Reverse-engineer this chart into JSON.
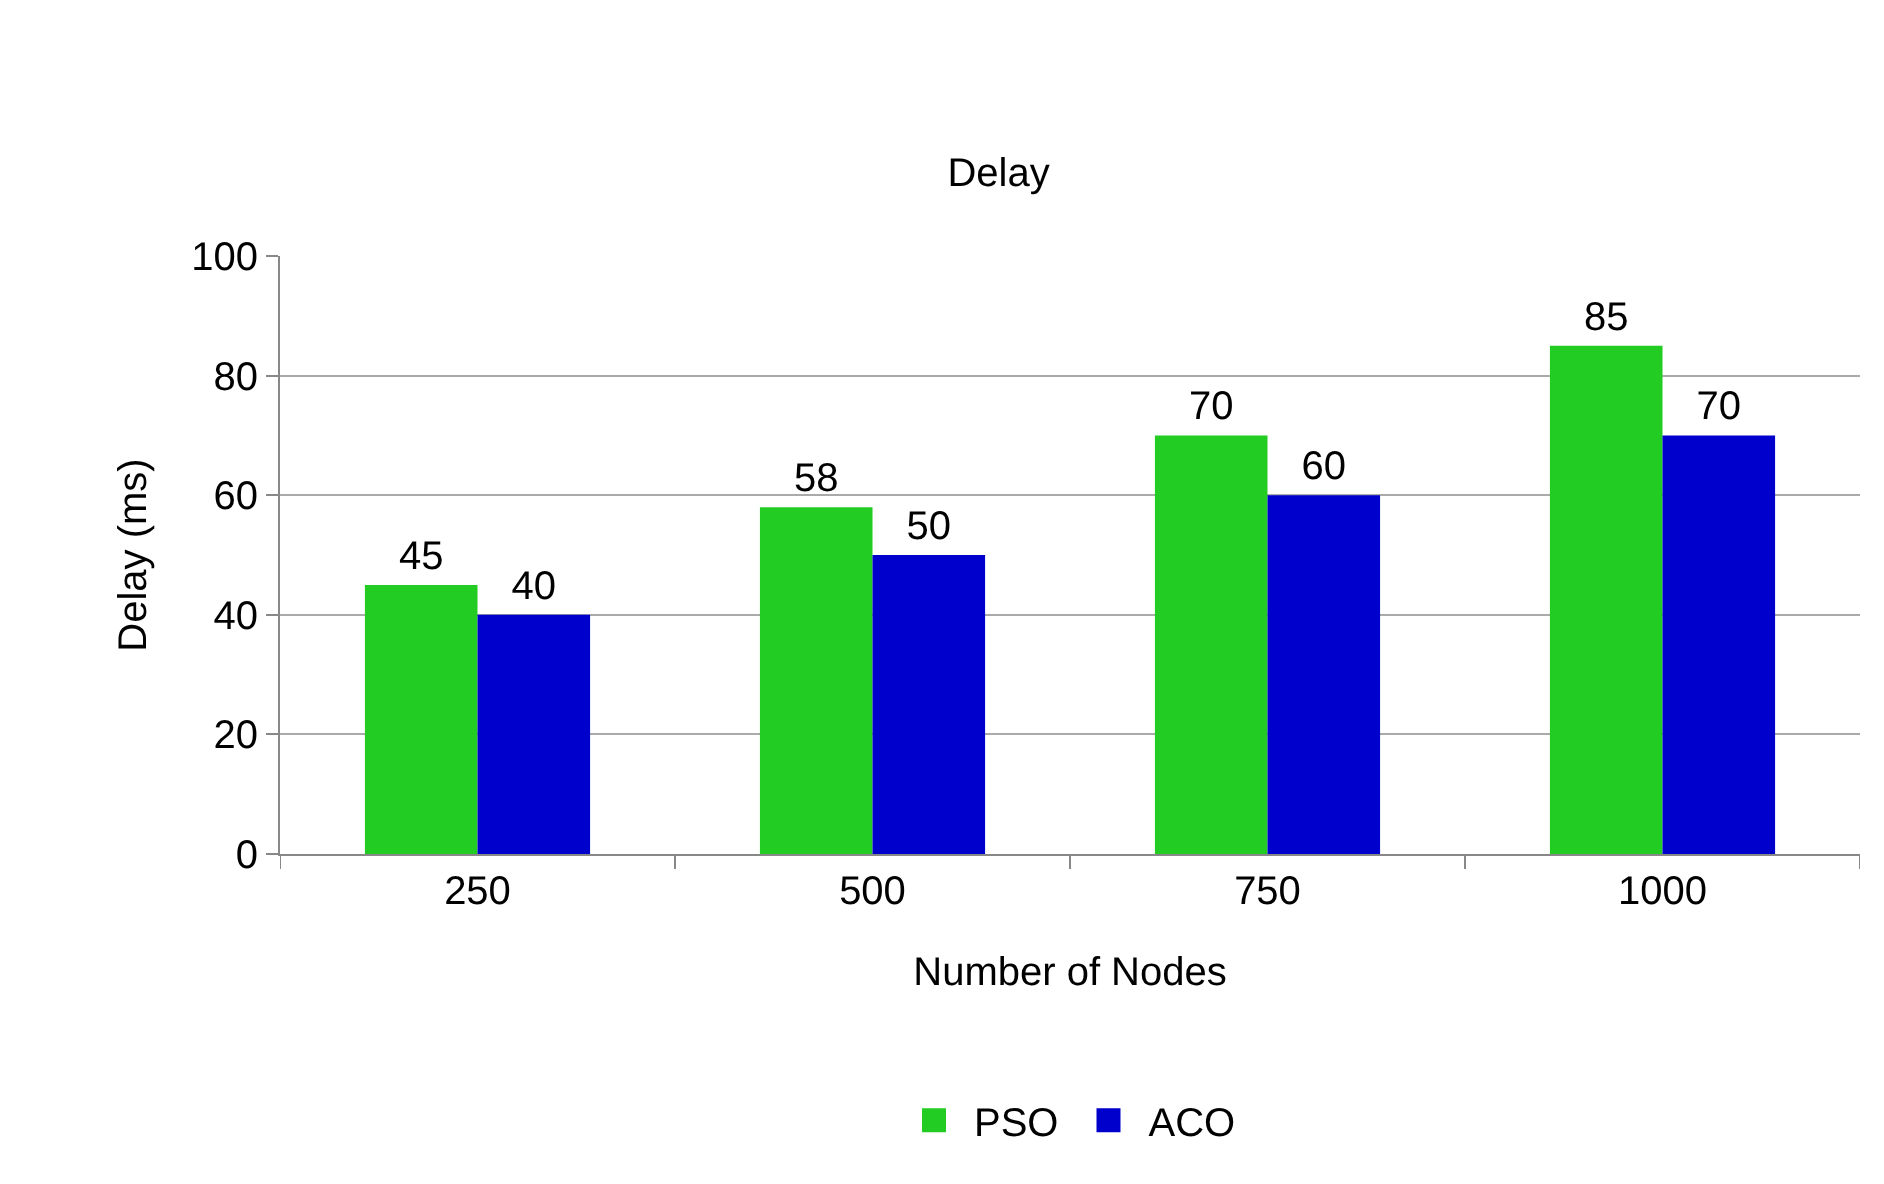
{
  "chart_data": {
    "type": "bar",
    "title": "Delay",
    "xlabel": "Number of Nodes",
    "ylabel": "Delay (ms)",
    "categories": [
      "250",
      "500",
      "750",
      "1000"
    ],
    "series": [
      {
        "name": "PSO",
        "color": "#22cc22",
        "values": [
          45,
          58,
          70,
          85
        ]
      },
      {
        "name": "ACO",
        "color": "#0000cc",
        "values": [
          40,
          50,
          60,
          70
        ]
      }
    ],
    "ylim": [
      0,
      100
    ],
    "yticks": [
      0,
      20,
      40,
      60,
      80,
      100
    ],
    "grid": "y",
    "legend": "bottom",
    "data_labels": true
  }
}
